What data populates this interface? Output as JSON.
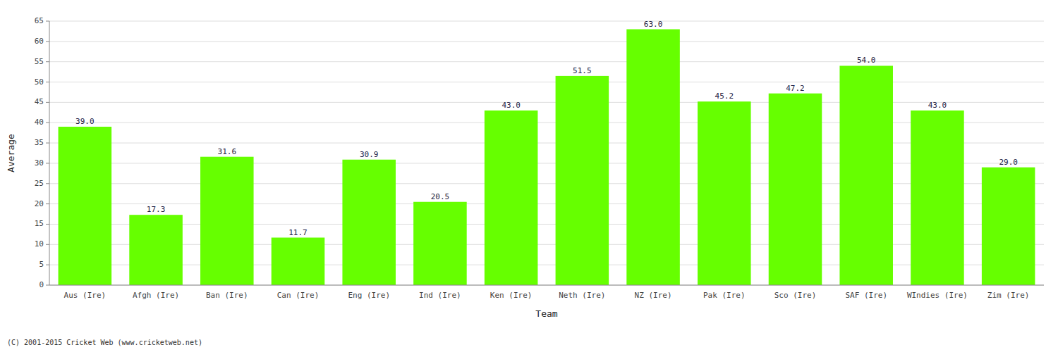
{
  "chart_data": {
    "type": "bar",
    "xlabel": "Team",
    "ylabel": "Average",
    "footnote": "(C) 2001-2015 Cricket Web (www.cricketweb.net)",
    "categories": [
      "Aus (Ire)",
      "Afgh (Ire)",
      "Ban (Ire)",
      "Can (Ire)",
      "Eng (Ire)",
      "Ind (Ire)",
      "Ken (Ire)",
      "Neth (Ire)",
      "NZ (Ire)",
      "Pak (Ire)",
      "Sco (Ire)",
      "SAF (Ire)",
      "WIndies (Ire)",
      "Zim (Ire)"
    ],
    "values": [
      39.0,
      17.3,
      31.6,
      11.7,
      30.9,
      20.5,
      43.0,
      51.5,
      63.0,
      45.2,
      47.2,
      54.0,
      43.0,
      29.0
    ],
    "value_labels": [
      "39.0",
      "17.3",
      "31.6",
      "11.7",
      "30.9",
      "20.5",
      "43.0",
      "51.5",
      "63.0",
      "45.2",
      "47.2",
      "54.0",
      "43.0",
      "29.0"
    ],
    "data_labels": true,
    "color": "#66ff00",
    "ylim": [
      0,
      65
    ],
    "yticks": [
      0,
      5,
      10,
      15,
      20,
      25,
      30,
      35,
      40,
      45,
      50,
      55,
      60,
      65
    ],
    "grid": true
  }
}
